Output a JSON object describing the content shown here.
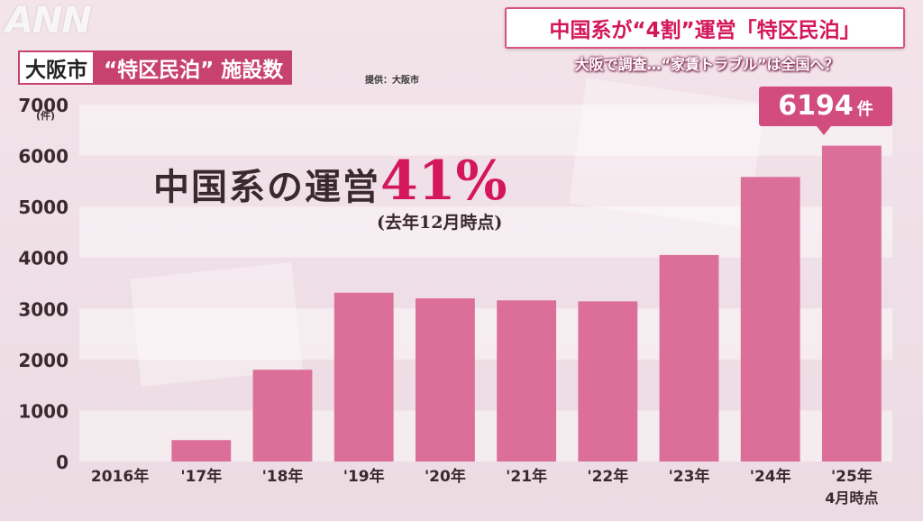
{
  "watermark": "ANN",
  "headline": "中国系が“4割”運営「特区民泊」",
  "sub_headline": "大阪で調査…“家賃トラブル”は全国へ？",
  "title_city": "大阪市",
  "title_rest": "“特区民泊” 施設数",
  "source": "提供：大阪市",
  "annotation": {
    "main": "中国系の運営",
    "percent": "41%",
    "sub": "(去年12月時点)"
  },
  "callout": {
    "value": "6194",
    "unit": "件"
  },
  "colors": {
    "bar": "#dc6f99",
    "accent": "#d3175a",
    "band": "#ffffff"
  },
  "chart_data": {
    "type": "bar",
    "title": "大阪市 “特区民泊” 施設数",
    "ylabel": "(件)",
    "ylim": [
      0,
      7000
    ],
    "yticks": [
      "0",
      "1000",
      "2000",
      "3000",
      "4000",
      "5000",
      "6000",
      "7000"
    ],
    "categories": [
      "2016年",
      "'17年",
      "'18年",
      "'19年",
      "'20年",
      "'21年",
      "'22年",
      "'23年",
      "'24年",
      "'25年"
    ],
    "category_sublabels": [
      "",
      "",
      "",
      "",
      "",
      "",
      "",
      "",
      "",
      "4月時点"
    ],
    "values": [
      0,
      420,
      1800,
      3310,
      3200,
      3160,
      3140,
      4050,
      5580,
      6194
    ]
  }
}
